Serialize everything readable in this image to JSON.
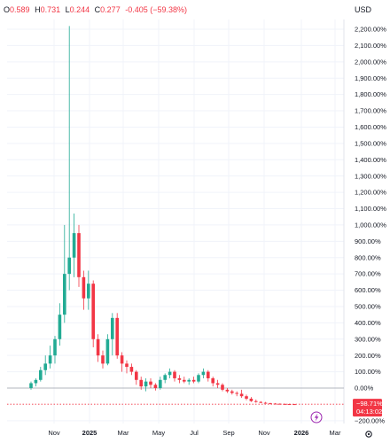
{
  "ohlc": {
    "open_key": "O",
    "open": "0.589",
    "high_key": "H",
    "high": "0.731",
    "low_key": "L",
    "low": "0.244",
    "close_key": "C",
    "close": "0.277",
    "change": "-0.405 (−59.38%)"
  },
  "currency": "USD",
  "colors": {
    "up": "#22ab94",
    "down": "#f23645",
    "grid": "#f0f3fa",
    "zero_line": "#b2b5be"
  },
  "settings_icon": "gear-icon",
  "lightning_icon": "lightning-icon",
  "chart_data": {
    "type": "candlestick",
    "y_unit": "percent",
    "ylim": [
      -200,
      2300
    ],
    "y_ticks": [
      -200,
      0,
      100,
      200,
      300,
      400,
      500,
      600,
      700,
      800,
      900,
      1000,
      1100,
      1200,
      1300,
      1400,
      1500,
      1600,
      1700,
      1800,
      1900,
      2000,
      2100,
      2200
    ],
    "y_tick_labels": [
      "−200.00%",
      "0.00%",
      "100.00%",
      "200.00%",
      "300.00%",
      "400.00%",
      "500.00%",
      "600.00%",
      "700.00%",
      "800.00%",
      "900.00%",
      "1,000.00%",
      "1,100.00%",
      "1,200.00%",
      "1,300.00%",
      "1,400.00%",
      "1,500.00%",
      "1,600.00%",
      "1,700.00%",
      "1,800.00%",
      "1,900.00%",
      "2,000.00%",
      "2,100.00%",
      "2,200.00%"
    ],
    "x_ticks": [
      "Nov",
      "2025",
      "Mar",
      "May",
      "Jul",
      "Sep",
      "Nov",
      "2026",
      "Mar"
    ],
    "bold_x_ticks": [
      "2025",
      "2026"
    ],
    "current_value_label": "−98.71%",
    "countdown_label": "04:13:02",
    "current_value": -98.71,
    "candles": [
      {
        "o": 0,
        "h": 40,
        "l": -10,
        "c": 30
      },
      {
        "o": 30,
        "h": 60,
        "l": 10,
        "c": 50
      },
      {
        "o": 50,
        "h": 130,
        "l": 40,
        "c": 110
      },
      {
        "o": 110,
        "h": 200,
        "l": 80,
        "c": 150
      },
      {
        "o": 150,
        "h": 260,
        "l": 120,
        "c": 200
      },
      {
        "o": 200,
        "h": 320,
        "l": 150,
        "c": 300
      },
      {
        "o": 300,
        "h": 520,
        "l": 260,
        "c": 450
      },
      {
        "o": 450,
        "h": 1000,
        "l": 400,
        "c": 700
      },
      {
        "o": 700,
        "h": 2220,
        "l": 600,
        "c": 800
      },
      {
        "o": 800,
        "h": 1070,
        "l": 680,
        "c": 950
      },
      {
        "o": 950,
        "h": 1000,
        "l": 620,
        "c": 680
      },
      {
        "o": 680,
        "h": 720,
        "l": 480,
        "c": 550
      },
      {
        "o": 550,
        "h": 720,
        "l": 480,
        "c": 640
      },
      {
        "o": 640,
        "h": 660,
        "l": 250,
        "c": 300
      },
      {
        "o": 300,
        "h": 330,
        "l": 160,
        "c": 200
      },
      {
        "o": 200,
        "h": 230,
        "l": 120,
        "c": 150
      },
      {
        "o": 150,
        "h": 330,
        "l": 140,
        "c": 300
      },
      {
        "o": 300,
        "h": 460,
        "l": 200,
        "c": 430
      },
      {
        "o": 430,
        "h": 460,
        "l": 180,
        "c": 200
      },
      {
        "o": 200,
        "h": 220,
        "l": 100,
        "c": 150
      },
      {
        "o": 150,
        "h": 170,
        "l": 90,
        "c": 130
      },
      {
        "o": 130,
        "h": 150,
        "l": 80,
        "c": 100
      },
      {
        "o": 100,
        "h": 110,
        "l": 20,
        "c": 50
      },
      {
        "o": 50,
        "h": 70,
        "l": -10,
        "c": 10
      },
      {
        "o": 10,
        "h": 60,
        "l": -20,
        "c": 40
      },
      {
        "o": 40,
        "h": 60,
        "l": 0,
        "c": 20
      },
      {
        "o": 20,
        "h": 30,
        "l": -15,
        "c": 0
      },
      {
        "o": 0,
        "h": 70,
        "l": -10,
        "c": 50
      },
      {
        "o": 50,
        "h": 90,
        "l": 30,
        "c": 80
      },
      {
        "o": 80,
        "h": 120,
        "l": 60,
        "c": 100
      },
      {
        "o": 100,
        "h": 110,
        "l": 40,
        "c": 60
      },
      {
        "o": 60,
        "h": 80,
        "l": 30,
        "c": 50
      },
      {
        "o": 50,
        "h": 70,
        "l": 30,
        "c": 40
      },
      {
        "o": 40,
        "h": 60,
        "l": 20,
        "c": 50
      },
      {
        "o": 50,
        "h": 70,
        "l": 30,
        "c": 40
      },
      {
        "o": 40,
        "h": 90,
        "l": 30,
        "c": 80
      },
      {
        "o": 80,
        "h": 120,
        "l": 60,
        "c": 100
      },
      {
        "o": 100,
        "h": 110,
        "l": 40,
        "c": 60
      },
      {
        "o": 60,
        "h": 70,
        "l": 10,
        "c": 30
      },
      {
        "o": 30,
        "h": 50,
        "l": 0,
        "c": 20
      },
      {
        "o": 20,
        "h": 30,
        "l": -20,
        "c": -10
      },
      {
        "o": -10,
        "h": 0,
        "l": -30,
        "c": -20
      },
      {
        "o": -20,
        "h": -10,
        "l": -40,
        "c": -30
      },
      {
        "o": -30,
        "h": -20,
        "l": -50,
        "c": -35
      },
      {
        "o": -35,
        "h": -10,
        "l": -60,
        "c": -50
      },
      {
        "o": -50,
        "h": -40,
        "l": -75,
        "c": -65
      },
      {
        "o": -65,
        "h": -55,
        "l": -85,
        "c": -80
      },
      {
        "o": -80,
        "h": -70,
        "l": -90,
        "c": -85
      },
      {
        "o": -85,
        "h": -80,
        "l": -93,
        "c": -90
      },
      {
        "o": -90,
        "h": -85,
        "l": -95,
        "c": -93
      },
      {
        "o": -93,
        "h": -90,
        "l": -96,
        "c": -95
      },
      {
        "o": -95,
        "h": -92,
        "l": -97,
        "c": -96
      },
      {
        "o": -96,
        "h": -94,
        "l": -98,
        "c": -97
      },
      {
        "o": -97,
        "h": -95,
        "l": -99,
        "c": -98
      },
      {
        "o": -98,
        "h": -96,
        "l": -99,
        "c": -98.3
      },
      {
        "o": -98.3,
        "h": -97,
        "l": -99.5,
        "c": -98.71
      }
    ]
  }
}
